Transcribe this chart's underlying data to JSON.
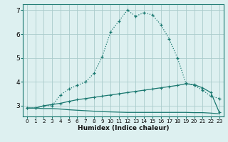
{
  "xlabel": "Humidex (Indice chaleur)",
  "bg_color": "#ddf0f0",
  "grid_color": "#aacccc",
  "line_color": "#1a7870",
  "spine_color": "#1a7870",
  "xlim": [
    -0.5,
    23.5
  ],
  "ylim": [
    2.55,
    7.25
  ],
  "x_ticks": [
    0,
    1,
    2,
    3,
    4,
    5,
    6,
    7,
    8,
    9,
    10,
    11,
    12,
    13,
    14,
    15,
    16,
    17,
    18,
    19,
    20,
    21,
    22,
    23
  ],
  "y_ticks": [
    3,
    4,
    5,
    6,
    7
  ],
  "curve1_x": [
    0,
    1,
    2,
    3,
    4,
    5,
    6,
    7,
    8,
    9,
    10,
    11,
    12,
    13,
    14,
    15,
    16,
    17,
    18,
    19,
    20,
    21,
    22,
    23
  ],
  "curve1_y": [
    2.9,
    2.9,
    3.0,
    3.0,
    3.45,
    3.7,
    3.85,
    4.0,
    4.35,
    5.05,
    6.1,
    6.55,
    7.0,
    6.75,
    6.9,
    6.8,
    6.4,
    5.8,
    5.0,
    3.95,
    3.85,
    3.65,
    3.4,
    3.3
  ],
  "curve2_x": [
    0,
    1,
    2,
    3,
    4,
    5,
    6,
    7,
    8,
    9,
    10,
    11,
    12,
    13,
    14,
    15,
    16,
    17,
    18,
    19,
    20,
    21,
    22,
    23
  ],
  "curve2_y": [
    2.9,
    2.9,
    3.0,
    3.05,
    3.1,
    3.18,
    3.25,
    3.3,
    3.35,
    3.4,
    3.45,
    3.5,
    3.55,
    3.6,
    3.65,
    3.7,
    3.75,
    3.8,
    3.85,
    3.92,
    3.88,
    3.75,
    3.55,
    2.72
  ],
  "curve3_x": [
    0,
    1,
    2,
    3,
    4,
    5,
    6,
    7,
    8,
    9,
    10,
    11,
    12,
    13,
    14,
    15,
    16,
    17,
    18,
    19,
    20,
    21,
    22,
    23
  ],
  "curve3_y": [
    2.9,
    2.9,
    2.88,
    2.88,
    2.86,
    2.83,
    2.81,
    2.79,
    2.77,
    2.75,
    2.74,
    2.73,
    2.72,
    2.72,
    2.72,
    2.72,
    2.72,
    2.72,
    2.72,
    2.72,
    2.71,
    2.71,
    2.69,
    2.66
  ]
}
